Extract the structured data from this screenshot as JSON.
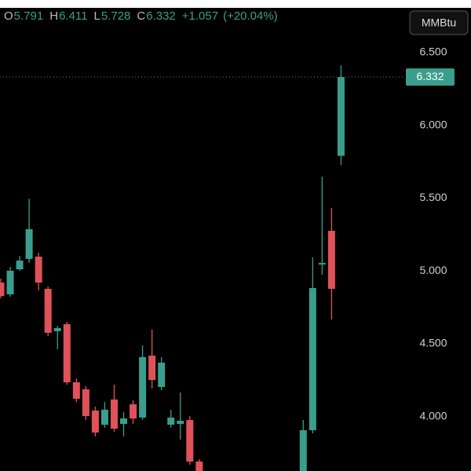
{
  "chart_data": {
    "type": "candlestick",
    "unit": "MMBtu",
    "header": [
      {
        "label": "O",
        "value": 5.791
      },
      {
        "label": "H",
        "value": 6.411
      },
      {
        "label": "L",
        "value": 5.728
      },
      {
        "label": "C",
        "value": 6.332
      }
    ],
    "change": "+1.057",
    "change_pct": "(+20.04%)",
    "ylim": [
      3.627,
      6.861
    ],
    "yticks": [
      {
        "value": 6.5,
        "label": "6.500"
      },
      {
        "value": 6,
        "label": "6.000"
      },
      {
        "value": 5.5,
        "label": "5.500"
      },
      {
        "value": 5,
        "label": "5.000"
      },
      {
        "value": 4.5,
        "label": "4.500"
      },
      {
        "value": 4,
        "label": "4.000"
      }
    ],
    "last_price": 6.332,
    "up_color": "#3a9e8c",
    "down_color": "#e0525a",
    "series": [
      {
        "open": [
          4.921,
          4.84,
          5.012,
          5.083,
          5.099,
          4.878,
          4.587,
          4.635,
          4.236,
          4.188,
          4.042,
          3.945,
          4.118,
          3.95,
          4.085,
          3.994,
          4.419,
          4.204,
          3.945,
          3.95,
          3.977,
          3.692,
          null,
          null,
          null,
          null,
          null,
          null,
          null,
          null,
          null,
          null,
          3.6,
          3.907,
          5.045,
          5.276,
          5.791
        ],
        "high": [
          4.948,
          5.029,
          5.104,
          5.497,
          5.126,
          4.894,
          4.624,
          4.651,
          4.263,
          4.209,
          4.069,
          4.101,
          4.22,
          4.031,
          4.112,
          4.49,
          4.597,
          4.409,
          4.047,
          4.166,
          4.004,
          3.708,
          null,
          null,
          null,
          null,
          null,
          null,
          null,
          null,
          null,
          null,
          3.977,
          5.094,
          5.648,
          5.433,
          6.411
        ],
        "low": [
          4.813,
          4.824,
          5.002,
          5.056,
          4.867,
          4.554,
          4.463,
          4.22,
          4.101,
          3.977,
          3.864,
          3.924,
          3.897,
          3.864,
          3.95,
          3.977,
          4.193,
          4.182,
          3.924,
          3.843,
          3.67,
          3.573,
          null,
          null,
          null,
          null,
          null,
          null,
          null,
          null,
          null,
          null,
          3.573,
          3.886,
          4.974,
          4.667,
          5.728
        ],
        "close": [
          4.829,
          5.002,
          5.072,
          5.287,
          4.921,
          4.576,
          4.608,
          4.236,
          4.123,
          4.004,
          3.891,
          4.048,
          3.918,
          3.988,
          3.988,
          4.409,
          4.252,
          4.371,
          3.994,
          3.972,
          3.692,
          3.6,
          null,
          null,
          null,
          null,
          null,
          null,
          null,
          null,
          null,
          null,
          3.907,
          4.883,
          5.056,
          4.878,
          6.332
        ]
      }
    ]
  }
}
